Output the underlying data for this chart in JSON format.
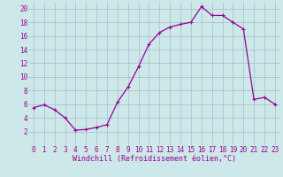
{
  "hours": [
    0,
    1,
    2,
    3,
    4,
    5,
    6,
    7,
    8,
    9,
    10,
    11,
    12,
    13,
    14,
    15,
    16,
    17,
    18,
    19,
    20,
    21,
    22,
    23
  ],
  "values": [
    5.5,
    5.9,
    5.2,
    4.0,
    2.2,
    2.3,
    2.6,
    3.0,
    6.3,
    8.5,
    11.5,
    14.8,
    16.5,
    17.3,
    17.7,
    18.0,
    20.3,
    19.0,
    19.0,
    18.0,
    17.0,
    6.7,
    7.0,
    6.0
  ],
  "line_color": "#990099",
  "bg_color": "#cce8e8",
  "grid_color": "#aabbcc",
  "xlabel": "Windchill (Refroidissement éolien,°C)",
  "ylim": [
    0,
    21
  ],
  "xlim": [
    -0.5,
    23.5
  ],
  "yticks": [
    2,
    4,
    6,
    8,
    10,
    12,
    14,
    16,
    18,
    20
  ],
  "xticks": [
    0,
    1,
    2,
    3,
    4,
    5,
    6,
    7,
    8,
    9,
    10,
    11,
    12,
    13,
    14,
    15,
    16,
    17,
    18,
    19,
    20,
    21,
    22,
    23
  ],
  "marker": "+",
  "marker_size": 3,
  "linewidth": 0.9,
  "xlabel_fontsize": 6.0,
  "tick_fontsize": 5.5
}
